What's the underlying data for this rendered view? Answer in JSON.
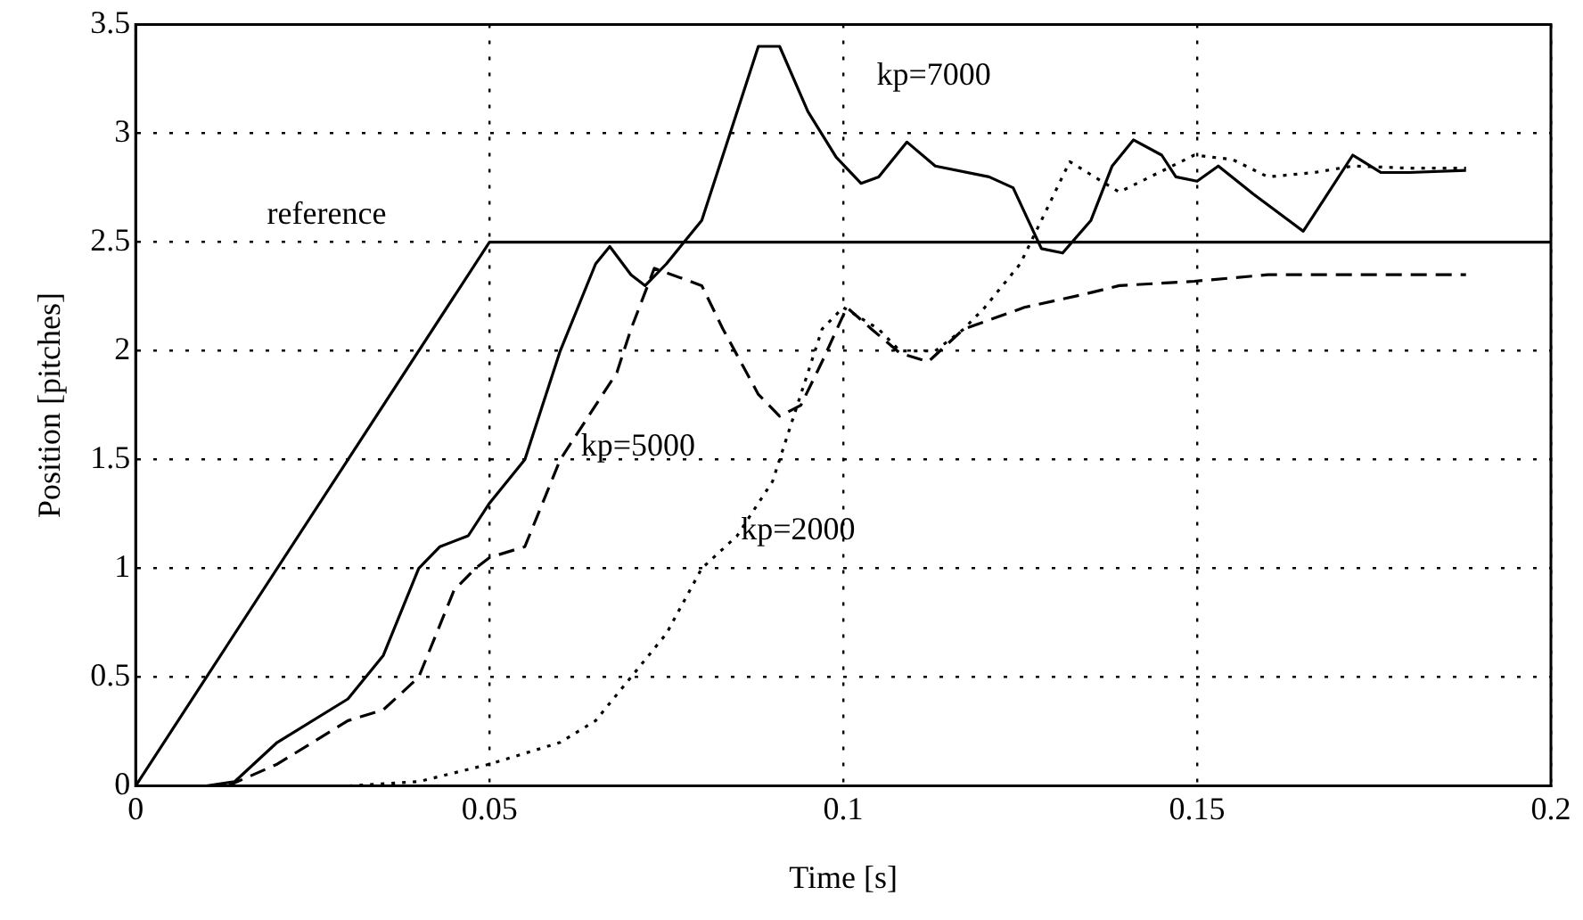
{
  "chart_data": {
    "type": "line",
    "xlabel": "Time [s]",
    "ylabel": "Position [pitches]",
    "xlim": [
      0,
      0.2
    ],
    "xticks": [
      0,
      0.05,
      0.1,
      0.15,
      0.2
    ],
    "ylim": [
      0,
      3.5
    ],
    "yticks": [
      0,
      0.5,
      1,
      1.5,
      2,
      2.5,
      3,
      3.5
    ],
    "grid": true,
    "legend": false,
    "marker": "none",
    "series": [
      {
        "name": "reference",
        "color": "#000000",
        "line_style": "solid",
        "x": [
          0,
          0.05,
          0.2
        ],
        "values": [
          0,
          2.5,
          2.5
        ]
      },
      {
        "name": "kp=7000",
        "color": "#000000",
        "line_style": "solid",
        "x": [
          0.01,
          0.014,
          0.02,
          0.03,
          0.035,
          0.04,
          0.043,
          0.047,
          0.05,
          0.055,
          0.06,
          0.065,
          0.067,
          0.07,
          0.072,
          0.075,
          0.08,
          0.085,
          0.088,
          0.091,
          0.095,
          0.099,
          0.1025,
          0.105,
          0.109,
          0.113,
          0.1206,
          0.124,
          0.128,
          0.131,
          0.135,
          0.138,
          0.141,
          0.145,
          0.147,
          0.15,
          0.153,
          0.158,
          0.165,
          0.168,
          0.172,
          0.176,
          0.18,
          0.188
        ],
        "values": [
          0,
          0.02,
          0.2,
          0.4,
          0.6,
          1,
          1.1,
          1.15,
          1.3,
          1.5,
          2,
          2.4,
          2.48,
          2.35,
          2.3,
          2.4,
          2.6,
          3.1,
          3.4,
          3.4,
          3.1,
          2.89,
          2.77,
          2.8,
          2.96,
          2.85,
          2.8,
          2.75,
          2.47,
          2.45,
          2.6,
          2.85,
          2.97,
          2.9,
          2.8,
          2.78,
          2.85,
          2.72,
          2.55,
          2.7,
          2.9,
          2.82,
          2.82,
          2.83
        ]
      },
      {
        "name": "kp=5000",
        "color": "#000000",
        "line_style": "dashed",
        "x": [
          0.013,
          0.02,
          0.025,
          0.03,
          0.035,
          0.04,
          0.045,
          0.048,
          0.05,
          0.055,
          0.06,
          0.065,
          0.068,
          0.07,
          0.0733,
          0.08,
          0.083,
          0.088,
          0.091,
          0.094,
          0.097,
          0.1005,
          0.104,
          0.108,
          0.112,
          0.117,
          0.1256,
          0.134,
          0.139,
          0.1496,
          0.16,
          0.188
        ],
        "values": [
          0,
          0.1,
          0.2,
          0.3,
          0.35,
          0.5,
          0.9,
          1,
          1.05,
          1.1,
          1.5,
          1.75,
          1.9,
          2.1,
          2.38,
          2.3,
          2.1,
          1.8,
          1.7,
          1.75,
          1.95,
          2.2,
          2.1,
          1.99,
          1.95,
          2.1,
          2.2,
          2.26,
          2.3,
          2.32,
          2.35,
          2.35
        ]
      },
      {
        "name": "kp=2000",
        "color": "#000000",
        "line_style": "dotted",
        "x": [
          0.015,
          0.03,
          0.04,
          0.05,
          0.06,
          0.065,
          0.07,
          0.075,
          0.08,
          0.085,
          0.09,
          0.093,
          0.095,
          0.097,
          0.1,
          0.105,
          0.108,
          0.113,
          0.117,
          0.12,
          0.125,
          0.128,
          0.132,
          0.139,
          0.1496,
          0.155,
          0.16,
          0.1666,
          0.172,
          0.18,
          0.188
        ],
        "values": [
          0,
          0,
          0.02,
          0.1,
          0.2,
          0.3,
          0.5,
          0.7,
          1,
          1.15,
          1.4,
          1.7,
          1.9,
          2.1,
          2.2,
          2.1,
          2,
          2,
          2.1,
          2.2,
          2.4,
          2.6,
          2.87,
          2.73,
          2.9,
          2.88,
          2.8,
          2.82,
          2.85,
          2.84,
          2.84
        ]
      }
    ]
  }
}
